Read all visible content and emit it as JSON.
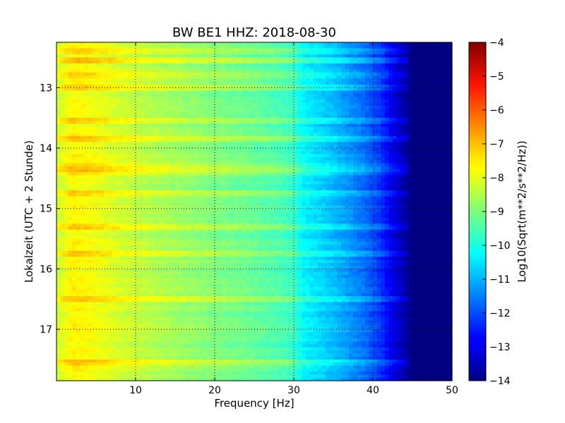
{
  "chart_data": {
    "type": "heatmap",
    "title": "BW BE1 HHZ: 2018-08-30",
    "xlabel": "Frequency [Hz]",
    "ylabel": "Lokalzeit (UTC + 2 Stunde)",
    "xlim": [
      0,
      50
    ],
    "ylim": [
      12.25,
      17.85
    ],
    "y_inverted": true,
    "x_ticks": [
      10,
      20,
      30,
      40,
      50
    ],
    "y_ticks": [
      13,
      14,
      15,
      16,
      17
    ],
    "grid": true,
    "colormap": "jet",
    "colorbar": {
      "label": "Log10(Sqrt(m**2/s**2/Hz))",
      "min": -14,
      "max": -4,
      "ticks": [
        -4,
        -5,
        -6,
        -7,
        -8,
        -9,
        -10,
        -11,
        -12,
        -13,
        -14
      ]
    },
    "spectral_profile": {
      "frequency_hz": [
        0,
        2,
        4,
        8,
        12,
        16,
        20,
        24,
        28,
        30,
        31,
        33,
        35,
        37,
        39,
        41,
        42.5,
        44,
        45,
        50
      ],
      "log10_level": [
        -8.3,
        -7.7,
        -7.8,
        -8.2,
        -8.5,
        -8.75,
        -9.0,
        -9.2,
        -9.5,
        -9.7,
        -10.3,
        -10.6,
        -10.9,
        -11.3,
        -11.7,
        -12.3,
        -13.0,
        -13.6,
        -14.0,
        -14.0
      ]
    },
    "bright_time_bands": [
      12.4,
      12.55,
      12.8,
      13.0,
      13.55,
      13.85,
      14.3,
      14.4,
      14.75,
      15.3,
      15.75,
      16.5,
      17.55
    ]
  }
}
